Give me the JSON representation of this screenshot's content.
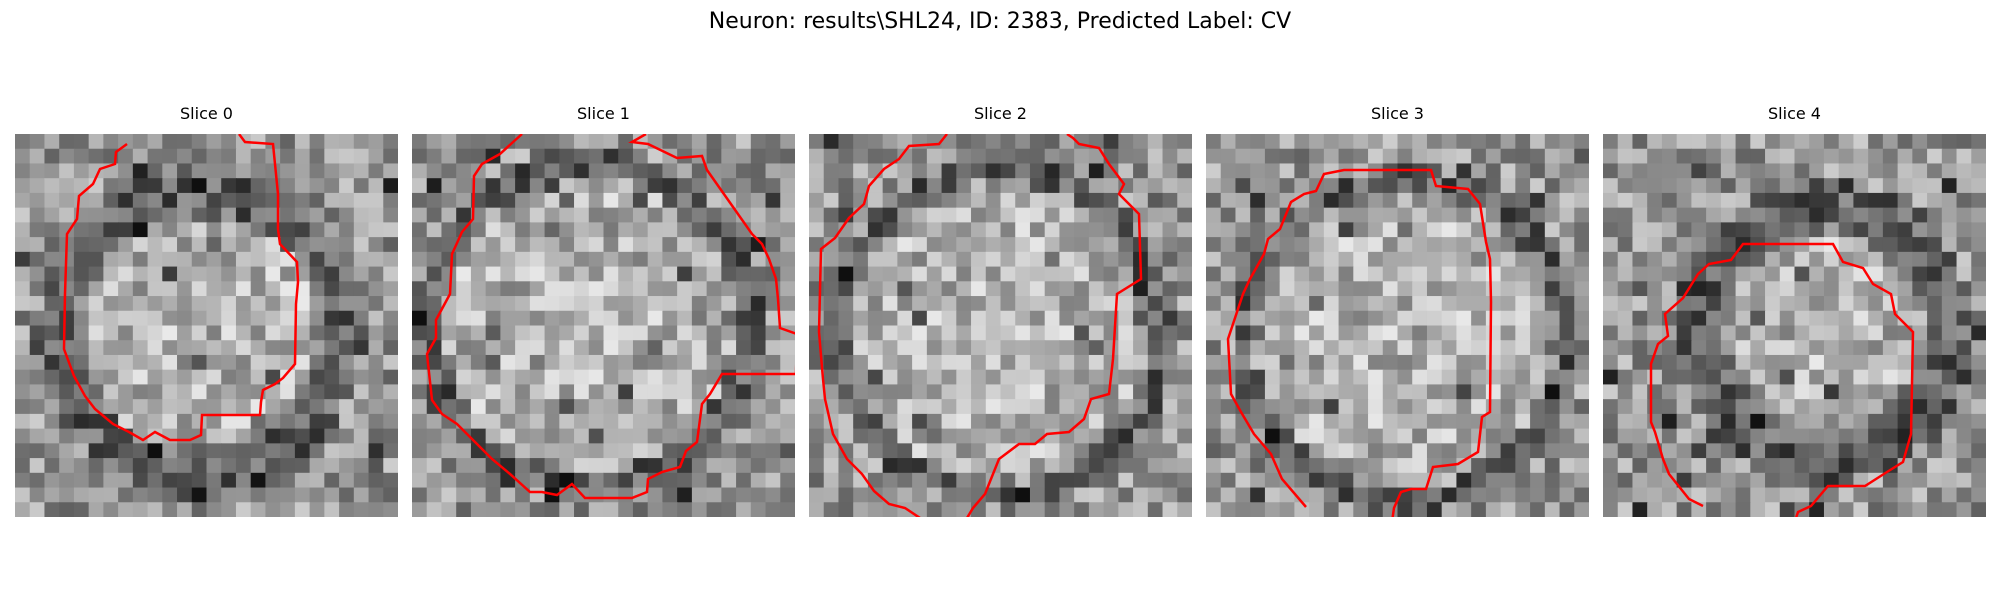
{
  "figure": {
    "title": "Neuron: results\\SHL24, ID: 2383, Predicted Label: CV"
  },
  "panels": [
    {
      "title": "Slice 0"
    },
    {
      "title": "Slice 1"
    },
    {
      "title": "Slice 2"
    },
    {
      "title": "Slice 3"
    },
    {
      "title": "Slice 4"
    }
  ],
  "style": {
    "contour_color": "#ff0000",
    "colormap": "grayscale"
  }
}
